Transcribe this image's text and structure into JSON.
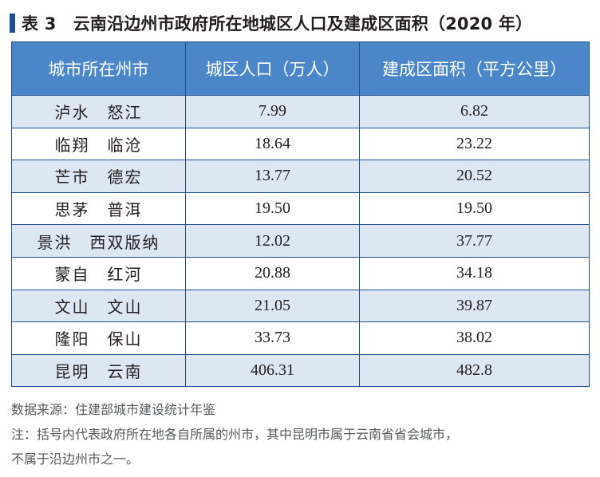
{
  "title": "表 3　云南沿边州市政府所在地城区人口及建成区面积（2020 年）",
  "colors": {
    "accent": "#1f4e8c",
    "header_bg": "#4a86c8",
    "row_tint": "#dce7f3",
    "border": "#1e4f8f"
  },
  "table": {
    "headers": [
      "城市所在州市",
      "城区人口（万人）",
      "建成区面积（平方公里）"
    ],
    "rows": [
      {
        "city": "泸水　怒江",
        "population": "7.99",
        "area": "6.82"
      },
      {
        "city": "临翔　临沧",
        "population": "18.64",
        "area": "23.22"
      },
      {
        "city": "芒市　德宏",
        "population": "13.77",
        "area": "20.52"
      },
      {
        "city": "思茅　普洱",
        "population": "19.50",
        "area": "19.50"
      },
      {
        "city": "景洪　西双版纳",
        "population": "12.02",
        "area": "37.77"
      },
      {
        "city": "蒙自　红河",
        "population": "20.88",
        "area": "34.18"
      },
      {
        "city": "文山　文山",
        "population": "21.05",
        "area": "39.87"
      },
      {
        "city": "隆阳　保山",
        "population": "33.73",
        "area": "38.02"
      },
      {
        "city": "昆明　云南",
        "population": "406.31",
        "area": "482.8"
      }
    ]
  },
  "notes": {
    "source": "数据来源：住建部城市建设统计年鉴",
    "note_line1": "注：括号内代表政府所在地各自所属的州市，其中昆明市属于云南省省会城市，",
    "note_line2": "不属于沿边州市之一。"
  }
}
